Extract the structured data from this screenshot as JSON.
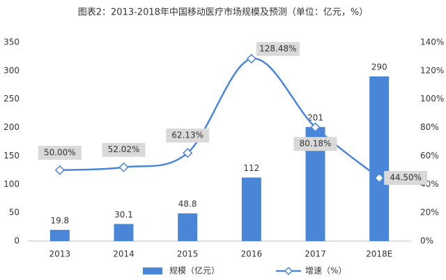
{
  "chart_data": {
    "type": "combo",
    "title": "图表2：2013-2018年中国移动医疗市场规模及预测（单位：亿元，%）",
    "categories": [
      "2013",
      "2014",
      "2015",
      "2016",
      "2017",
      "2018E"
    ],
    "series": [
      {
        "name": "规模（亿元）",
        "type": "bar",
        "color": "#4a86d8",
        "values": [
          19.8,
          30.1,
          48.8,
          112,
          201,
          290
        ]
      },
      {
        "name": "增速（%）",
        "type": "line",
        "axis": "y2",
        "color": "#4a86d8",
        "values": [
          50.0,
          52.02,
          62.13,
          128.48,
          80.18,
          44.5
        ],
        "value_labels": [
          "50.00%",
          "52.02%",
          "62.13%",
          "128.48%",
          "80.18%",
          "44.50%"
        ]
      }
    ],
    "ylim": [
      0,
      350
    ],
    "yticks": [
      0,
      50,
      100,
      150,
      200,
      250,
      300,
      350
    ],
    "y2lim": [
      0,
      140
    ],
    "y2ticks": [
      {
        "value": 0,
        "label": "0%"
      },
      {
        "value": 20,
        "label": "20%"
      },
      {
        "value": 40,
        "label": "40%"
      },
      {
        "value": 60,
        "label": "60%"
      },
      {
        "value": 80,
        "label": "80%"
      },
      {
        "value": 100,
        "label": "100%"
      },
      {
        "value": 120,
        "label": "120%"
      },
      {
        "value": 140,
        "label": "140%"
      }
    ],
    "grid": false,
    "legend": "bottom"
  }
}
